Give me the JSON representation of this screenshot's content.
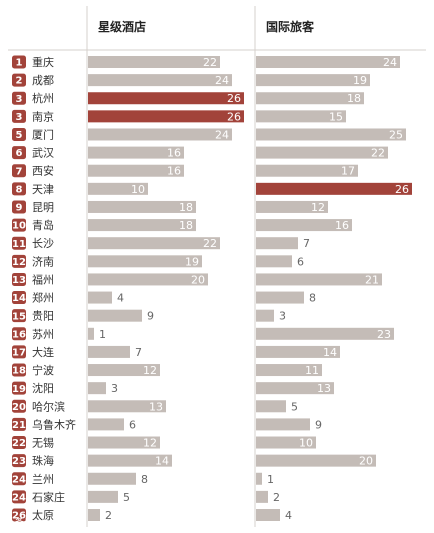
{
  "chart_data": {
    "type": "bar",
    "panels": [
      {
        "title": "星级酒店",
        "values": [
          22,
          24,
          26,
          26,
          24,
          16,
          16,
          10,
          18,
          18,
          22,
          19,
          20,
          4,
          9,
          1,
          7,
          12,
          3,
          13,
          6,
          12,
          14,
          8,
          5,
          2
        ]
      },
      {
        "title": "国际旅客",
        "values": [
          24,
          19,
          18,
          15,
          25,
          22,
          17,
          26,
          12,
          16,
          7,
          6,
          21,
          8,
          3,
          23,
          14,
          11,
          13,
          5,
          9,
          10,
          20,
          1,
          2,
          4
        ]
      }
    ],
    "ranks": [
      1,
      2,
      3,
      3,
      5,
      6,
      7,
      8,
      9,
      10,
      11,
      12,
      13,
      14,
      15,
      16,
      17,
      18,
      19,
      20,
      21,
      22,
      23,
      24,
      24,
      26
    ],
    "categories": [
      "重庆",
      "成都",
      "杭州",
      "南京",
      "厦门",
      "武汉",
      "西安",
      "天津",
      "昆明",
      "青岛",
      "长沙",
      "济南",
      "福州",
      "郑州",
      "贵阳",
      "苏州",
      "大连",
      "宁波",
      "沈阳",
      "哈尔滨",
      "乌鲁木齐",
      "无锡",
      "珠海",
      "兰州",
      "石家庄",
      "太原"
    ],
    "xlim": [
      0,
      26
    ]
  },
  "colors": {
    "bar": "#c4bcb7",
    "highlight": "#a2433a",
    "rank_badge": "#a2433a",
    "divider": "#d6d0cc"
  },
  "watermark": "头条号"
}
